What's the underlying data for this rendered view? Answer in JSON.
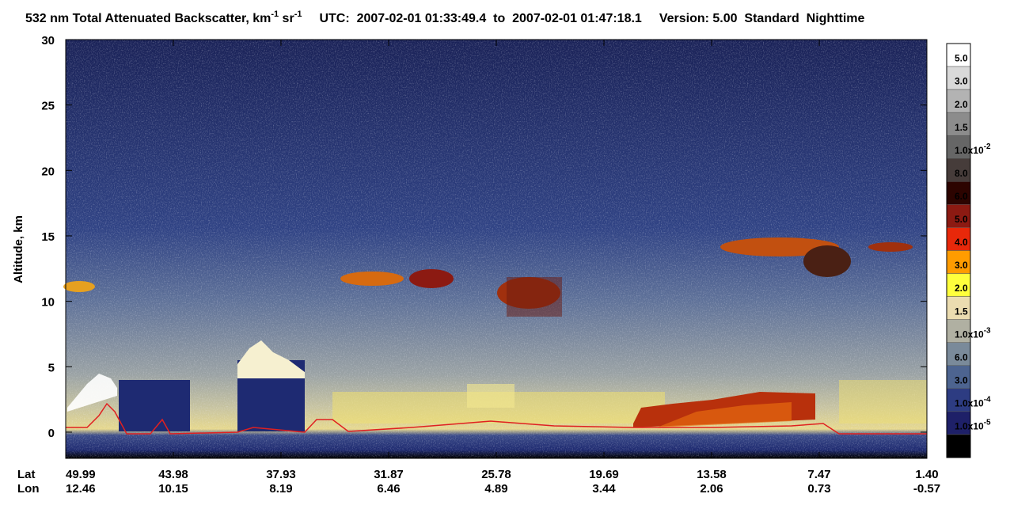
{
  "chart_data": {
    "type": "curtain",
    "title": "532 nm Total Attenuated Backscatter, km",
    "title_sup1": "-1",
    "title_mid": " sr",
    "title_sup2": "-1",
    "utc": "UTC:  2007-02-01 01:33:49.4  to  2007-02-01 01:47:18.1",
    "version": "Version: 5.00  Standard  Nighttime",
    "ylabel": "Altitude, km",
    "ylim": [
      -2,
      30
    ],
    "yticks": [
      0,
      5,
      10,
      15,
      20,
      25,
      30
    ],
    "x_rows": [
      {
        "name": "Lat",
        "labels": [
          "49.99",
          "43.98",
          "37.93",
          "31.87",
          "25.78",
          "19.69",
          "13.58",
          "7.47",
          "1.40"
        ]
      },
      {
        "name": "Lon",
        "labels": [
          "12.46",
          "10.15",
          "8.19",
          "6.46",
          "4.89",
          "3.44",
          "2.06",
          "0.73",
          "-0.57"
        ]
      }
    ],
    "colorbar": {
      "colors": [
        "#ffffff",
        "#d9d9d9",
        "#b3b3b3",
        "#8c8c8c",
        "#666666",
        "#463c3a",
        "#2c0400",
        "#8c1a12",
        "#e8280a",
        "#ff9c00",
        "#ffff3c",
        "#ebdcb0",
        "#b0b0a2",
        "#7a8a9a",
        "#4d6490",
        "#2d3c82",
        "#1e2068",
        "#000000"
      ],
      "labels": [
        "5.0",
        "3.0",
        "2.0",
        "1.5",
        {
          "text": "1.0x10",
          "exp": "-2"
        },
        "8.0",
        "6.0",
        "5.0",
        "4.0",
        "3.0",
        "2.0",
        "1.5",
        {
          "text": "1.0x10",
          "exp": "-3"
        },
        "6.0",
        "3.0",
        {
          "text": "1.0x10",
          "exp": "-4"
        },
        {
          "text": "1.0x10",
          "exp": "-5"
        }
      ]
    }
  }
}
